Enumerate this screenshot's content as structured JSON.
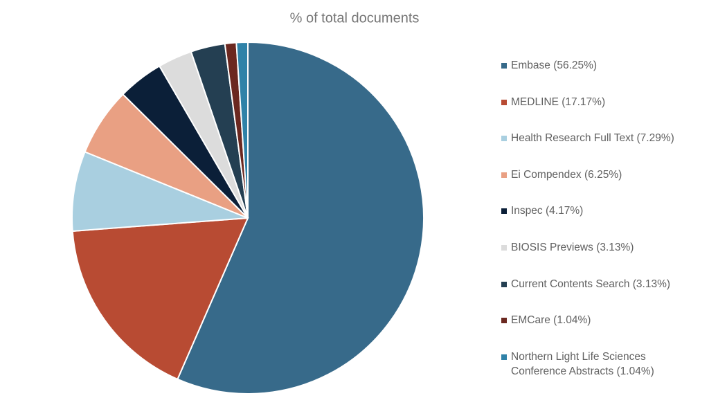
{
  "chart_data": {
    "type": "pie",
    "title": "% of total documents",
    "categories": [
      "Embase",
      "MEDLINE",
      "Health Research Full Text",
      "Ei Compendex",
      "Inspec",
      "BIOSIS Previews",
      "Current Contents Search",
      "EMCare",
      "Northern Light Life Sciences Conference Abstracts"
    ],
    "values": [
      56.25,
      17.17,
      7.29,
      6.25,
      4.17,
      3.13,
      3.13,
      1.04,
      1.04
    ],
    "value_labels": [
      "(56.25%)",
      "(17.17%)",
      "(7.29%)",
      "(6.25%)",
      "(4.17%)",
      "(3.13%)",
      "(3.13%)",
      "(1.04%)",
      "(1.04%)"
    ],
    "colors": [
      "#376a8a",
      "#b84b33",
      "#a9cfe0",
      "#e9a083",
      "#0b1f38",
      "#dcdcdc",
      "#243f52",
      "#6b2820",
      "#2f82a8"
    ],
    "legend": "right"
  }
}
